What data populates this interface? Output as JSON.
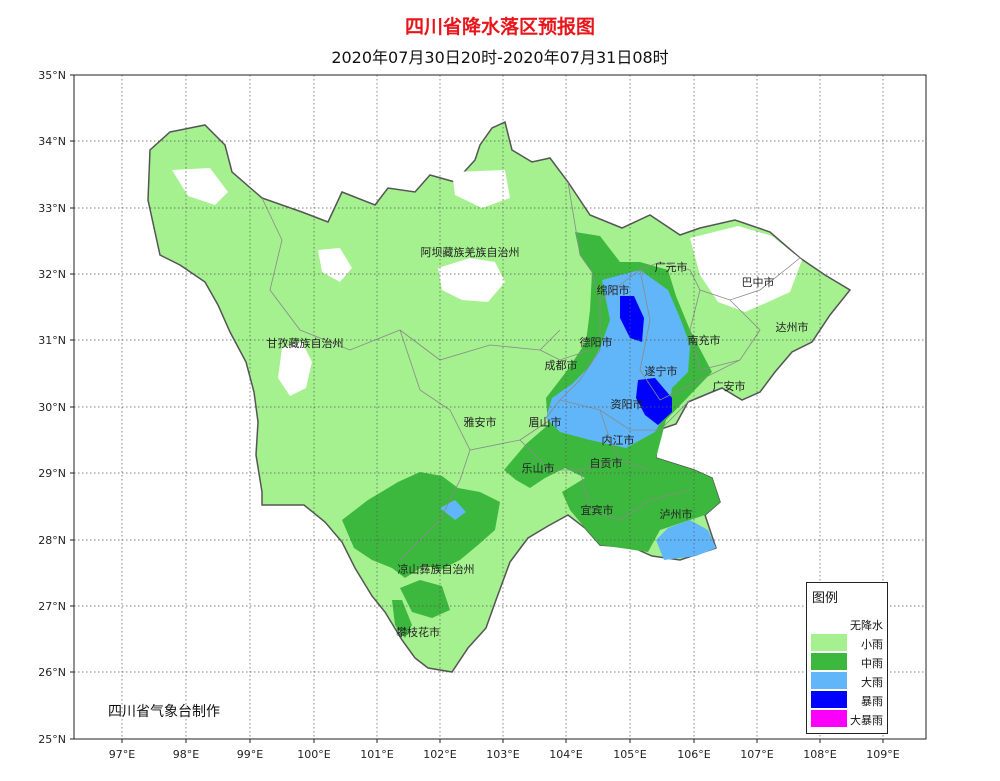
{
  "title": "四川省降水落区预报图",
  "subtitle": "2020年07月30日20时-2020年07月31日08时",
  "credit": "四川省气象台制作",
  "axes": {
    "lat_labels": [
      "25°N",
      "26°N",
      "27°N",
      "28°N",
      "29°N",
      "30°N",
      "31°N",
      "32°N",
      "33°N",
      "34°N",
      "35°N"
    ],
    "lon_labels": [
      "97°E",
      "98°E",
      "99°E",
      "100°E",
      "101°E",
      "102°E",
      "103°E",
      "104°E",
      "105°E",
      "106°E",
      "107°E",
      "108°E",
      "109°E"
    ]
  },
  "legend": {
    "title": "图例",
    "items": [
      {
        "label": "无降水",
        "color": "#ffffff"
      },
      {
        "label": "小雨",
        "color": "#a5f08f"
      },
      {
        "label": "中雨",
        "color": "#3db83e"
      },
      {
        "label": "大雨",
        "color": "#61b6fa"
      },
      {
        "label": "暴雨",
        "color": "#0000ff"
      },
      {
        "label": "大暴雨",
        "color": "#fa00fa"
      }
    ]
  },
  "regions": {
    "aba": "阿坝藏族羌族自治州",
    "ganzi": "甘孜藏族自治州",
    "liangshan": "凉山彝族自治州",
    "guangyuan": "广元市",
    "bazhong": "巴中市",
    "mianyang": "绵阳市",
    "dazhou": "达州市",
    "deyang": "德阳市",
    "nanchong": "南充市",
    "chengdu": "成都市",
    "suining": "遂宁市",
    "guangan": "广安市",
    "ziyang": "资阳市",
    "yaan": "雅安市",
    "meishan": "眉山市",
    "neijiang": "内江市",
    "leshan": "乐山市",
    "zigong": "自贡市",
    "yibin": "宜宾市",
    "luzhou": "泸州市",
    "panzhihua": "攀枝花市"
  }
}
